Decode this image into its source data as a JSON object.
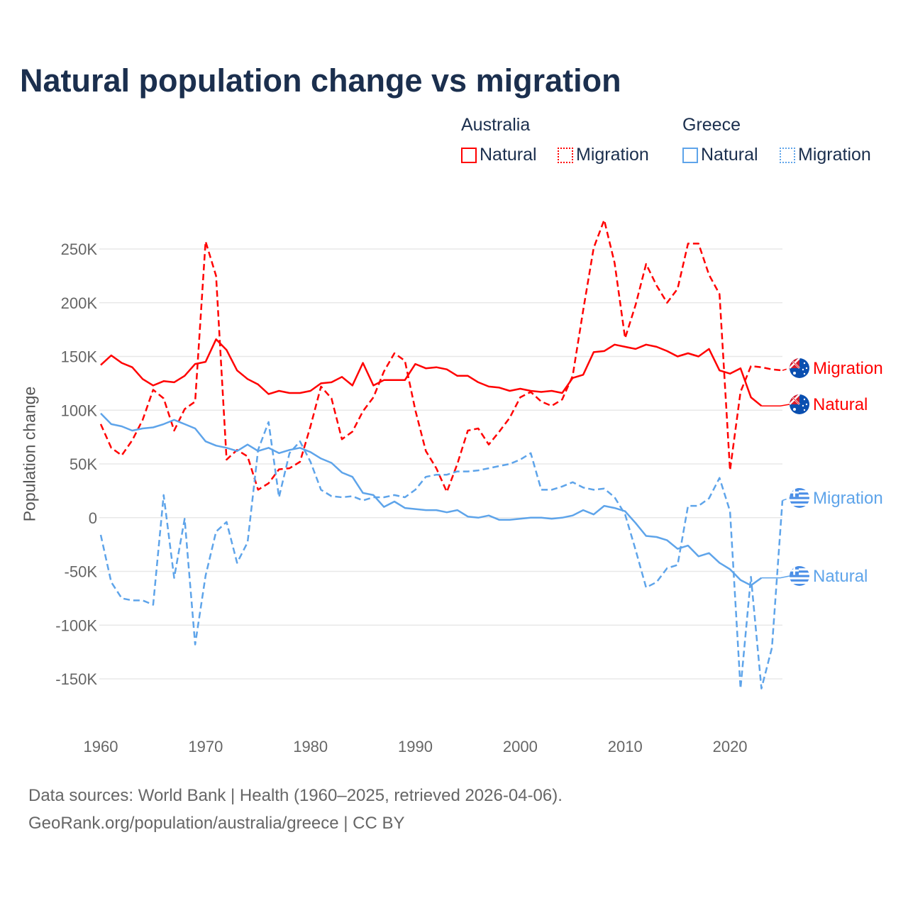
{
  "title": "Natural population change vs migration",
  "legend": {
    "groups": [
      {
        "name": "Australia",
        "items": [
          "Natural",
          "Migration"
        ],
        "color": "#ff0000"
      },
      {
        "name": "Greece",
        "items": [
          "Natural",
          "Migration"
        ],
        "color": "#5ea4ea"
      }
    ]
  },
  "sources": {
    "line1": "Data sources: World Bank | Health (1960–2025, retrieved 2026-04-06).",
    "line2": "GeoRank.org/population/australia/greece | CC BY"
  },
  "chart_data": {
    "type": "line",
    "title": "Natural population change vs migration",
    "xlabel": "",
    "ylabel": "Population change",
    "xlim": [
      1960,
      2025
    ],
    "ylim": [
      -150000,
      250000
    ],
    "x_ticks": [
      1960,
      1970,
      1980,
      1990,
      2000,
      2010,
      2020
    ],
    "x_tick_labels": [
      "1960",
      "1970",
      "1980",
      "1990",
      "2000",
      "2010",
      "2020"
    ],
    "y_ticks": [
      250000,
      200000,
      150000,
      100000,
      50000,
      0,
      -50000,
      -100000,
      -150000
    ],
    "y_tick_labels": [
      "250K",
      "200K",
      "150K",
      "100K",
      "50K",
      "0",
      "-50K",
      "-100K",
      "-150K"
    ],
    "grid": true,
    "legend_position": "top-right",
    "series": [
      {
        "name": "Australia Natural",
        "label": "Natural",
        "country": "Australia",
        "flag": "australia-flag",
        "color": "#ff0000",
        "dash": false,
        "start_year": 1960,
        "values": [
          142000,
          151000,
          144000,
          140000,
          129000,
          123000,
          127000,
          126000,
          132000,
          143000,
          145000,
          166000,
          156000,
          137000,
          129000,
          124000,
          115000,
          118000,
          116000,
          116000,
          118000,
          125000,
          126000,
          131000,
          123000,
          144000,
          123000,
          128000,
          128000,
          128000,
          143000,
          139000,
          140000,
          138000,
          132000,
          132000,
          126000,
          122000,
          121000,
          118000,
          120000,
          118000,
          117000,
          118000,
          116000,
          130000,
          133000,
          154000,
          155000,
          161000,
          159000,
          157000,
          161000,
          159000,
          155000,
          150000,
          153000,
          150000,
          157000,
          137000,
          134000,
          139000,
          112000,
          104000
        ]
      },
      {
        "name": "Australia Migration",
        "label": "Migration",
        "country": "Australia",
        "flag": "australia-flag",
        "color": "#ff0000",
        "dash": true,
        "start_year": 1960,
        "values": [
          87000,
          65000,
          58000,
          72000,
          91000,
          119000,
          111000,
          81000,
          101000,
          108000,
          257000,
          225000,
          54000,
          63000,
          57000,
          26000,
          32000,
          45000,
          46000,
          52000,
          85000,
          122000,
          111000,
          73000,
          80000,
          99000,
          112000,
          136000,
          153000,
          146000,
          100000,
          62000,
          46000,
          24000,
          50000,
          81000,
          83000,
          68000,
          80000,
          93000,
          112000,
          117000,
          108000,
          104000,
          110000,
          132000,
          193000,
          251000,
          277000,
          237000,
          167000,
          198000,
          236000,
          216000,
          200000,
          213000,
          255000,
          255000,
          226000,
          208000,
          44000,
          117000,
          141000,
          140000,
          138000,
          137000
        ]
      },
      {
        "name": "Greece Natural",
        "label": "Natural",
        "country": "Greece",
        "flag": "greece-flag",
        "color": "#5ea4ea",
        "dash": false,
        "start_year": 1960,
        "values": [
          97000,
          87000,
          85000,
          81000,
          83000,
          84000,
          87000,
          91000,
          87000,
          83000,
          71000,
          67000,
          65000,
          62000,
          68000,
          62000,
          65000,
          60000,
          63000,
          65000,
          61000,
          55000,
          51000,
          42000,
          38000,
          23000,
          21000,
          10000,
          15000,
          9000,
          8000,
          7000,
          7000,
          5000,
          7000,
          1000,
          0,
          2000,
          -2000,
          -2000,
          -1000,
          0,
          0,
          -1000,
          0,
          2000,
          7000,
          3000,
          11000,
          9000,
          6000,
          -5000,
          -17000,
          -18000,
          -21000,
          -29000,
          -26000,
          -36000,
          -33000,
          -42000,
          -48000,
          -58000,
          -63000,
          -56000
        ]
      },
      {
        "name": "Greece Migration",
        "label": "Migration",
        "country": "Greece",
        "flag": "greece-flag",
        "color": "#5ea4ea",
        "dash": true,
        "start_year": 1960,
        "values": [
          -16000,
          -60000,
          -75000,
          -77000,
          -77000,
          -81000,
          21000,
          -56000,
          -1000,
          -118000,
          -54000,
          -13000,
          -4000,
          -42000,
          -23000,
          63000,
          89000,
          19000,
          60000,
          71000,
          52000,
          26000,
          20000,
          19000,
          20000,
          16000,
          19000,
          19000,
          21000,
          19000,
          26000,
          38000,
          40000,
          40000,
          43000,
          43000,
          44000,
          46000,
          48000,
          50000,
          54000,
          60000,
          26000,
          26000,
          29000,
          33000,
          28000,
          26000,
          27000,
          19000,
          3000,
          -30000,
          -65000,
          -60000,
          -47000,
          -44000,
          11000,
          11000,
          18000,
          37000,
          6000,
          -159000,
          -55000,
          -159000,
          -121000,
          16000
        ]
      }
    ]
  }
}
